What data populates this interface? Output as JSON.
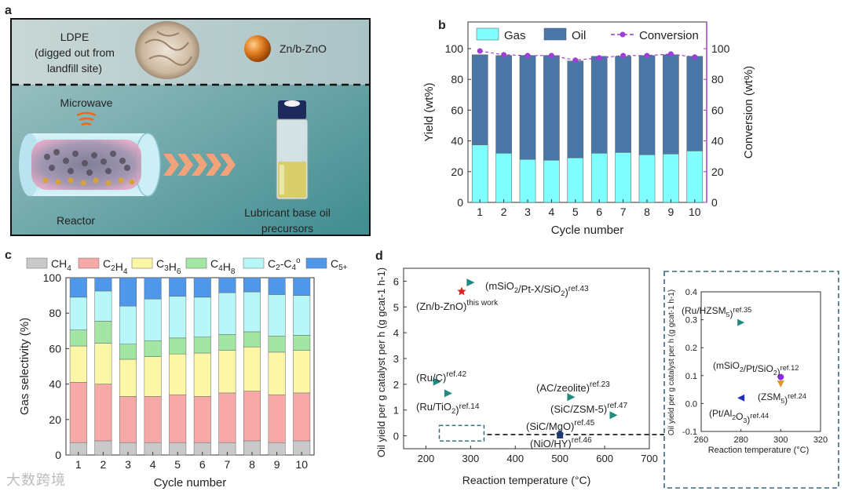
{
  "panel_a": {
    "label": "a",
    "ldpe_text": [
      "LDPE",
      "(digged out from",
      "landfill site)"
    ],
    "catalyst_text": "Zn/b-ZnO",
    "microwave_text": "Microwave",
    "reactor_text": "Reactor",
    "product_text": [
      "Lubricant base oil",
      "precursors"
    ],
    "colors": {
      "top_bg": "#b8cccd",
      "bottom_bg": "#5e9a9a",
      "sphere": "#e07a1f",
      "chevron": "#f2a37a"
    }
  },
  "chart_data": [
    {
      "panel": "b",
      "type": "bar",
      "stacked": true,
      "categories": [
        "1",
        "2",
        "3",
        "4",
        "5",
        "6",
        "7",
        "8",
        "9",
        "10"
      ],
      "series": [
        {
          "name": "Gas",
          "values": [
            37.5,
            32,
            28,
            27.5,
            29,
            32,
            32.5,
            31,
            31.5,
            33.5
          ],
          "color": "#7fffff"
        },
        {
          "name": "Oil",
          "values": [
            58.5,
            63.5,
            67.5,
            68,
            63,
            63,
            62.5,
            64.5,
            64.5,
            61.5
          ],
          "color": "#4a76a8"
        }
      ],
      "line_series": {
        "name": "Conversion",
        "values": [
          98.5,
          96,
          95.5,
          95.5,
          92.5,
          94,
          95.5,
          95.5,
          96.5,
          94.5
        ],
        "color": "#9b3fd6",
        "axis": "right"
      },
      "xlabel": "Cycle number",
      "ylabel": "Yield (wt%)",
      "y2label": "Conversion (wt%)",
      "ylim": [
        0,
        100
      ],
      "y2lim": [
        0,
        100
      ],
      "yticks": [
        0,
        20,
        40,
        60,
        80,
        100
      ],
      "legend": "top"
    },
    {
      "panel": "c",
      "type": "bar",
      "stacked": true,
      "categories": [
        "1",
        "2",
        "3",
        "4",
        "5",
        "6",
        "7",
        "8",
        "9",
        "10"
      ],
      "series": [
        {
          "name": "CH4",
          "values": [
            7,
            8,
            7,
            7,
            7,
            7,
            7,
            8,
            7,
            8
          ],
          "color": "#c9c9c9"
        },
        {
          "name": "C2H4",
          "values": [
            34,
            32,
            26,
            26,
            27,
            26,
            28,
            28,
            27,
            27
          ],
          "color": "#f6a9a7"
        },
        {
          "name": "C3H6",
          "values": [
            20.5,
            23,
            21,
            22.5,
            23,
            24.5,
            24,
            25,
            24,
            24
          ],
          "color": "#fbf7a6"
        },
        {
          "name": "C4H8",
          "values": [
            9,
            12.5,
            8.5,
            9,
            9,
            9,
            9,
            8.5,
            9,
            8.5
          ],
          "color": "#a3e6a3"
        },
        {
          "name": "C2-C4o",
          "values": [
            18.5,
            17,
            21.5,
            23.5,
            23.5,
            22.5,
            23.5,
            22.5,
            23.5,
            22.5
          ],
          "color": "#b7f7f7"
        },
        {
          "name": "C5+",
          "values": [
            11,
            7.5,
            16,
            12,
            10.5,
            11,
            8.5,
            8,
            9.5,
            10
          ],
          "color": "#4f97e8"
        }
      ],
      "legend_labels": [
        "CH4",
        "C2H4",
        "C3H6",
        "C4H8",
        "C2-C4o",
        "C5+"
      ],
      "xlabel": "Cycle number",
      "ylabel": "Gas selectivity (%)",
      "ylim": [
        0,
        100
      ],
      "yticks": [
        0,
        20,
        40,
        60,
        80,
        100
      ],
      "legend": "top"
    },
    {
      "panel": "d",
      "type": "scatter",
      "xlabel": "Reaction temperature (°C)",
      "ylabel": "Oil yield per g catalyst per h (g gcat-1 h-1)",
      "xlim": [
        150,
        700
      ],
      "ylim": [
        -0.5,
        6.5
      ],
      "xticks": [
        200,
        300,
        400,
        500,
        600,
        700
      ],
      "yticks": [
        0,
        1,
        2,
        3,
        4,
        5,
        6
      ],
      "points": [
        {
          "label": "(Zn/b-ZnO)",
          "sup": "this work",
          "x": 280,
          "y": 5.6,
          "marker": "star",
          "color": "#e02020"
        },
        {
          "label": "(mSiO2/Pt-X/SiO2)",
          "sup": "ref.43",
          "x": 300,
          "y": 5.95,
          "marker": "tri-right",
          "color": "#1f8a80"
        },
        {
          "label": "(Ru/C)",
          "sup": "ref.42",
          "x": 225,
          "y": 2.1,
          "marker": "tri-right",
          "color": "#1f8a80"
        },
        {
          "label": "(Ru/TiO2)",
          "sup": "ref.14",
          "x": 250,
          "y": 1.65,
          "marker": "tri-right",
          "color": "#1f8a80"
        },
        {
          "label": "(AC/zeolite)",
          "sup": "ref.23",
          "x": 525,
          "y": 1.5,
          "marker": "tri-right",
          "color": "#1f8a80"
        },
        {
          "label": "(SiC/ZSM-5)",
          "sup": "ref.47",
          "x": 620,
          "y": 0.8,
          "marker": "tri-right",
          "color": "#1f8a80"
        },
        {
          "label": "(SiC/MgO)",
          "sup": "ref.45",
          "x": 500,
          "y": 0.08,
          "marker": "diamond",
          "color": "#1f5aa8"
        },
        {
          "label": "(NiO/HY)",
          "sup": "ref.46",
          "x": 500,
          "y": 0.02,
          "marker": "square",
          "color": "#1f3a70"
        }
      ],
      "inset_box": {
        "x": [
          230,
          330
        ],
        "y": [
          -0.2,
          0.4
        ]
      }
    },
    {
      "panel": "d-inset",
      "type": "scatter",
      "xlabel": "Reaction temperature (°C)",
      "ylabel": "Oil yield per g catalyst per h (g gcat-1 h-1)",
      "xlim": [
        260,
        320
      ],
      "ylim": [
        -0.1,
        0.4
      ],
      "xticks": [
        260,
        280,
        300,
        320
      ],
      "yticks": [
        -0.1,
        0.0,
        0.1,
        0.2,
        0.3,
        0.4
      ],
      "points": [
        {
          "label": "(Ru/HZSM5)",
          "sup": "ref.35",
          "x": 280,
          "y": 0.29,
          "marker": "tri-right",
          "color": "#1f8a80"
        },
        {
          "label": "(mSiO2/Pt/SiO2)",
          "sup": "ref.12",
          "x": 300,
          "y": 0.095,
          "marker": "circle",
          "color": "#8a2be2"
        },
        {
          "label": "(ZSM5)",
          "sup": "ref.24",
          "x": 300,
          "y": 0.07,
          "marker": "tri-down",
          "color": "#e0942a"
        },
        {
          "label": "(Pt/Al2O3)",
          "sup": "ref.44",
          "x": 280,
          "y": 0.02,
          "marker": "tri-left",
          "color": "#1f30c0"
        }
      ]
    }
  ],
  "labels": {
    "b": "b",
    "c": "c",
    "d": "d"
  },
  "watermark": "大数跨境"
}
